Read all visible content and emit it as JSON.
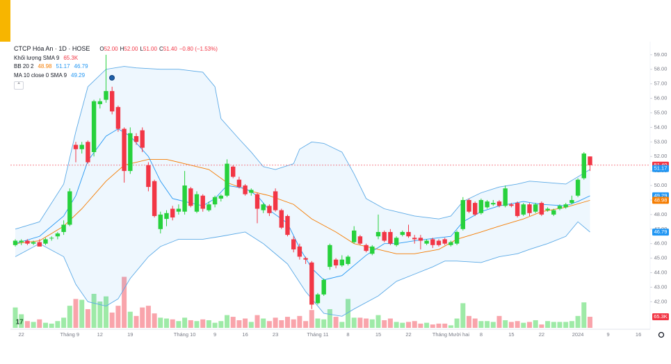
{
  "legend": {
    "symbol": "CTCP Hóa An · 1D · HOSE",
    "ohlc": [
      {
        "key": "O",
        "value": "52.00"
      },
      {
        "key": "H",
        "value": "52.00"
      },
      {
        "key": "L",
        "value": "51.00"
      },
      {
        "key": "C",
        "value": "51.40"
      }
    ],
    "change": "−0.80 (−1.53%)",
    "indicators": [
      {
        "name": "Khối lượng SMA 9",
        "values": [
          {
            "text": "65.3K",
            "color": "#f23645"
          }
        ]
      },
      {
        "name": "BB 20 2",
        "values": [
          {
            "text": "48.98",
            "color": "#f57c00"
          },
          {
            "text": "51.17",
            "color": "#2196f3"
          },
          {
            "text": "46.79",
            "color": "#2196f3"
          }
        ]
      },
      {
        "name": "MA 10 close 0 SMA 9",
        "values": [
          {
            "text": "49.29",
            "color": "#2196f3"
          }
        ]
      }
    ]
  },
  "chart_data": {
    "type": "candlestick",
    "categories": [
      null,
      "22",
      null,
      null,
      null,
      null,
      null,
      null,
      null,
      "Tháng 9",
      null,
      null,
      null,
      null,
      "12",
      null,
      null,
      null,
      null,
      "19",
      null,
      null,
      null,
      null,
      null,
      null,
      null,
      null,
      "Tháng 10",
      null,
      null,
      null,
      null,
      "9",
      null,
      null,
      null,
      null,
      "16",
      null,
      null,
      null,
      null,
      "23",
      null,
      null,
      null,
      null,
      null,
      null,
      "Tháng 11",
      null,
      null,
      null,
      null,
      "8",
      null,
      null,
      null,
      null,
      "15",
      null,
      null,
      null,
      null,
      "22",
      null,
      null,
      null,
      null,
      null,
      null,
      "Tháng Mười hai",
      null,
      null,
      null,
      null,
      "8",
      null,
      null,
      null,
      null,
      "15",
      null,
      null,
      null,
      null,
      "22",
      null,
      null,
      null,
      null,
      null,
      "2024",
      null,
      null,
      null,
      null,
      "9",
      null,
      null,
      null,
      null,
      "16"
    ],
    "open": [
      45.9,
      46.1,
      46.2,
      46.0,
      46.1,
      46.0,
      46.4,
      46.5,
      46.8,
      47.3,
      52.8,
      52.5,
      53.0,
      52.3,
      55.6,
      55.9,
      56.5,
      55.4,
      53.9,
      51.0,
      53.4,
      53.8,
      51.4,
      50.3,
      47.0,
      47.7,
      48.4,
      48.2,
      48.2,
      49.8,
      48.2,
      49.3,
      48.3,
      48.7,
      49.1,
      49.3,
      51.3,
      50.4,
      50.0,
      49.5,
      49.4,
      48.3,
      48.6,
      49.6,
      48.3,
      47.9,
      46.3,
      45.8,
      45.0,
      44.7,
      41.9,
      42.5,
      44.4,
      44.9,
      44.5,
      44.6,
      46.1,
      46.5,
      45.9,
      45.3,
      46.5,
      46.8,
      46.8,
      45.9,
      46.6,
      46.8,
      46.4,
      46.4,
      46.0,
      46.3,
      46.2,
      46.3,
      45.9,
      46.0,
      47.0,
      49.0,
      48.8,
      48.1,
      48.5,
      48.7,
      48.9,
      48.6,
      48.7,
      48.8,
      48.0,
      48.7,
      48.2,
      48.8,
      48.3,
      48.0,
      48.4,
      48.5,
      48.8,
      49.3,
      50.5,
      52.0,
      null,
      null,
      null,
      null,
      null,
      null,
      null,
      null
    ],
    "high": [
      46.3,
      46.3,
      46.3,
      46.2,
      46.3,
      46.4,
      46.5,
      46.8,
      47.6,
      49.8,
      53.0,
      53.0,
      53.1,
      55.9,
      56.0,
      59.0,
      56.8,
      55.5,
      54.0,
      54.0,
      53.6,
      54.0,
      51.6,
      50.4,
      48.2,
      48.3,
      48.6,
      48.7,
      51.0,
      49.9,
      49.6,
      49.4,
      48.9,
      49.3,
      49.4,
      51.8,
      51.4,
      50.6,
      50.1,
      49.8,
      49.5,
      48.8,
      48.7,
      49.8,
      48.4,
      48.0,
      46.5,
      46.0,
      45.1,
      44.8,
      42.6,
      43.6,
      46.0,
      45.0,
      45.2,
      45.2,
      47.2,
      46.6,
      46.0,
      45.9,
      48.0,
      46.9,
      47.0,
      46.5,
      46.9,
      47.3,
      46.6,
      46.6,
      46.3,
      46.4,
      46.3,
      46.4,
      46.2,
      46.9,
      49.2,
      49.1,
      48.9,
      49.1,
      49.0,
      49.0,
      49.0,
      50.0,
      48.8,
      48.9,
      48.8,
      48.8,
      48.8,
      48.9,
      48.5,
      48.4,
      48.7,
      48.8,
      49.3,
      50.5,
      52.3,
      52.0,
      null,
      null,
      null,
      null,
      null,
      null,
      null,
      null
    ],
    "low": [
      45.8,
      45.9,
      45.9,
      45.9,
      45.8,
      45.9,
      46.2,
      46.3,
      46.6,
      47.2,
      51.6,
      52.2,
      51.5,
      52.0,
      55.3,
      55.7,
      54.9,
      53.7,
      50.2,
      50.8,
      52.8,
      52.3,
      49.6,
      47.8,
      46.7,
      47.2,
      47.6,
      48.0,
      48.0,
      48.5,
      48.1,
      48.2,
      48.2,
      48.5,
      48.9,
      49.2,
      50.5,
      49.8,
      49.3,
      49.3,
      47.4,
      48.1,
      47.9,
      48.2,
      47.0,
      46.5,
      45.4,
      44.9,
      44.6,
      41.5,
      41.8,
      42.4,
      44.2,
      44.3,
      44.4,
      44.5,
      46.0,
      45.9,
      45.4,
      45.2,
      46.3,
      46.1,
      45.9,
      45.8,
      46.5,
      46.4,
      46.0,
      45.6,
      45.9,
      45.7,
      45.8,
      45.9,
      45.8,
      45.9,
      46.9,
      48.1,
      47.9,
      48.0,
      48.4,
      48.6,
      48.5,
      48.5,
      48.5,
      47.8,
      47.9,
      47.9,
      48.1,
      47.9,
      48.2,
      47.9,
      48.3,
      48.4,
      48.7,
      49.2,
      50.4,
      51.0,
      null,
      null,
      null,
      null,
      null,
      null,
      null,
      null
    ],
    "close": [
      46.2,
      46.2,
      46.0,
      46.1,
      45.8,
      46.3,
      46.4,
      46.7,
      47.3,
      49.6,
      52.5,
      52.8,
      51.6,
      55.8,
      55.8,
      56.5,
      55.1,
      53.9,
      51.0,
      53.6,
      53.0,
      52.6,
      49.9,
      47.9,
      48.0,
      48.1,
      47.8,
      48.4,
      50.0,
      48.6,
      49.4,
      48.4,
      48.7,
      49.2,
      49.3,
      51.5,
      50.6,
      49.9,
      49.4,
      49.7,
      48.4,
      48.7,
      48.1,
      48.3,
      47.1,
      46.6,
      45.6,
      45.1,
      44.9,
      41.8,
      42.5,
      43.5,
      45.9,
      44.5,
      44.9,
      45.1,
      46.9,
      46.0,
      45.5,
      45.8,
      46.8,
      46.2,
      46.0,
      46.4,
      46.8,
      46.5,
      46.3,
      46.2,
      46.2,
      45.9,
      45.9,
      46.0,
      46.1,
      46.8,
      49.0,
      48.2,
      48.0,
      49.0,
      48.9,
      48.8,
      48.6,
      49.8,
      48.6,
      47.9,
      48.7,
      48.1,
      48.7,
      48.0,
      48.4,
      48.3,
      48.6,
      48.7,
      49.0,
      50.4,
      52.2,
      51.4,
      null,
      null,
      null,
      null,
      null,
      null,
      null,
      null
    ],
    "volume": [
      120,
      80,
      40,
      35,
      50,
      30,
      25,
      40,
      60,
      130,
      170,
      165,
      110,
      200,
      155,
      185,
      90,
      130,
      300,
      95,
      70,
      120,
      130,
      85,
      60,
      55,
      50,
      40,
      60,
      45,
      40,
      50,
      45,
      30,
      40,
      75,
      65,
      45,
      55,
      35,
      75,
      55,
      40,
      60,
      45,
      65,
      50,
      70,
      40,
      105,
      55,
      50,
      110,
      65,
      35,
      170,
      60,
      60,
      55,
      50,
      75,
      45,
      55,
      35,
      30,
      35,
      40,
      25,
      30,
      20,
      25,
      25,
      15,
      55,
      145,
      70,
      55,
      40,
      40,
      35,
      70,
      45,
      35,
      40,
      30,
      35,
      45,
      20,
      40,
      35,
      35,
      35,
      40,
      70,
      150,
      65.3,
      null,
      null,
      null,
      null,
      null,
      null,
      null,
      null
    ],
    "up_color": "#27d13c",
    "down_color": "#f23645",
    "ylim": [
      40.2,
      59.9
    ],
    "yticks": [
      {
        "value": 59,
        "label": "59.00"
      },
      {
        "value": 58,
        "label": "58.00"
      },
      {
        "value": 57,
        "label": "57.00"
      },
      {
        "value": 56,
        "label": "56.00"
      },
      {
        "value": 55,
        "label": "55.00"
      },
      {
        "value": 54,
        "label": "54.00"
      },
      {
        "value": 53,
        "label": "53.00"
      },
      {
        "value": 52,
        "label": "52.00"
      },
      {
        "value": 51,
        "label": "51.00"
      },
      {
        "value": 50,
        "label": "50.00"
      },
      {
        "value": 49,
        "label": "49.00"
      },
      {
        "value": 48,
        "label": "48.00"
      },
      {
        "value": 47,
        "label": "47.00"
      },
      {
        "value": 46,
        "label": "46.00"
      },
      {
        "value": 45,
        "label": "45.00"
      },
      {
        "value": 44,
        "label": "44.00"
      },
      {
        "value": 43,
        "label": "43.00"
      },
      {
        "value": 42,
        "label": "42.00"
      }
    ],
    "bb_upper": {
      "color": "#5aa9e6",
      "x": [
        0,
        4,
        8,
        10,
        12,
        15,
        18,
        20,
        24,
        27,
        31,
        33,
        34,
        37,
        39,
        41,
        43,
        46,
        47,
        49,
        51,
        54,
        56,
        58,
        61,
        63,
        66,
        70,
        72,
        74,
        77,
        80,
        83,
        85,
        88,
        91,
        93,
        95
      ],
      "values": [
        47.0,
        47.5,
        50.1,
        53.7,
        56.8,
        58.0,
        58.2,
        58.1,
        58.0,
        58.0,
        57.8,
        56.8,
        54.6,
        53.2,
        52.3,
        51.3,
        51.1,
        51.5,
        52.5,
        53.0,
        52.9,
        52.3,
        50.8,
        49.1,
        48.4,
        48.2,
        47.9,
        47.7,
        47.9,
        48.9,
        49.5,
        49.9,
        50.1,
        50.3,
        50.2,
        50.1,
        50.6,
        51.1
      ]
    },
    "bb_lower": {
      "color": "#5aa9e6",
      "x": [
        0,
        4,
        8,
        10,
        12,
        15,
        17,
        19,
        22,
        24,
        27,
        31,
        34,
        38,
        41,
        45,
        48,
        51,
        54,
        56,
        60,
        63,
        66,
        69,
        71,
        73,
        77,
        80,
        83,
        85,
        88,
        91,
        93,
        95
      ],
      "values": [
        45.1,
        46.0,
        45.1,
        43.2,
        42.0,
        41.7,
        42.2,
        43.6,
        45.1,
        45.8,
        46.3,
        46.3,
        46.5,
        46.8,
        46.0,
        44.6,
        42.7,
        41.2,
        41.0,
        41.5,
        42.4,
        43.4,
        43.9,
        44.4,
        44.8,
        44.8,
        44.7,
        45.1,
        45.3,
        45.6,
        46.0,
        46.5,
        47.5,
        46.8
      ]
    },
    "bb_basis": {
      "color": "#f57c00",
      "x": [
        0,
        4,
        8,
        11,
        15,
        18,
        22,
        25,
        28,
        32,
        35,
        39,
        42,
        46,
        49,
        53,
        56,
        60,
        63,
        66,
        70,
        73,
        77,
        80,
        84,
        87,
        91,
        95
      ],
      "values": [
        46.0,
        46.2,
        47.2,
        48.4,
        50.3,
        51.4,
        51.8,
        51.8,
        51.5,
        51.1,
        50.2,
        49.6,
        49.3,
        48.7,
        47.7,
        46.8,
        46.0,
        45.6,
        45.3,
        45.3,
        45.6,
        46.3,
        46.8,
        47.2,
        47.7,
        48.2,
        48.5,
        48.98
      ]
    },
    "ma": {
      "color": "#2196f3",
      "x": [
        0,
        4,
        8,
        10,
        12,
        15,
        17,
        19,
        22,
        24,
        26,
        28,
        31,
        33,
        35,
        38,
        40,
        42,
        45,
        47,
        49,
        51,
        54,
        56,
        58,
        61,
        63,
        66,
        70,
        72,
        74,
        77,
        80,
        84,
        87,
        91,
        93,
        95
      ],
      "values": [
        46.0,
        46.5,
        47.9,
        49.3,
        51.7,
        53.4,
        53.9,
        53.4,
        52.0,
        50.3,
        49.1,
        48.9,
        48.6,
        49.1,
        50.0,
        49.8,
        49.3,
        48.3,
        47.4,
        45.7,
        44.3,
        43.5,
        43.8,
        44.5,
        45.2,
        46.0,
        46.0,
        46.2,
        46.4,
        46.5,
        47.5,
        48.2,
        48.6,
        48.9,
        48.7,
        48.6,
        48.9,
        49.29
      ]
    },
    "price_tags": [
      {
        "value": 51.4,
        "label": "51.40",
        "color": "#f23645"
      },
      {
        "value": 51.17,
        "label": "51.17",
        "color": "#2196f3"
      },
      {
        "value": 49.29,
        "label": "49.29",
        "color": "#2196f3"
      },
      {
        "value": 48.98,
        "label": "48.98",
        "color": "#f57c00"
      },
      {
        "value": 46.79,
        "label": "46.79",
        "color": "#2196f3"
      }
    ],
    "volume_tag": {
      "value": 65.3,
      "label": "65.3K",
      "color": "#f23645"
    }
  }
}
